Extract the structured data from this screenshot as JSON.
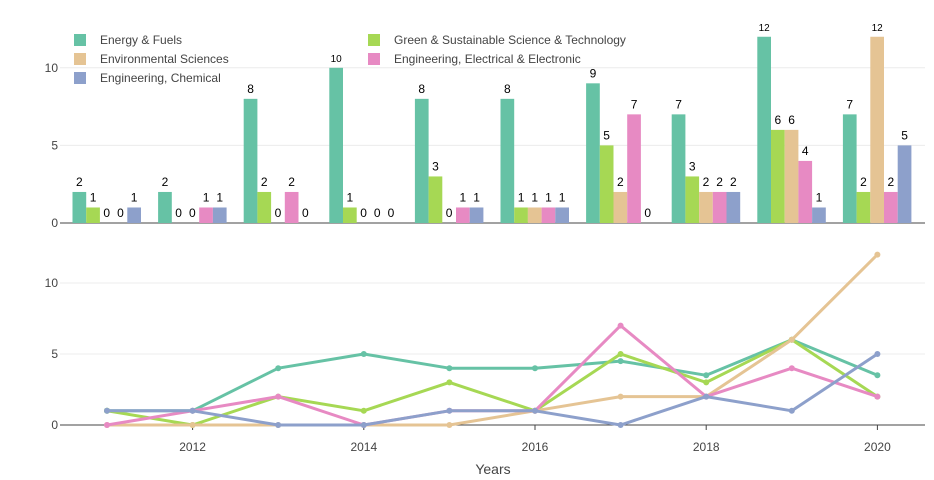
{
  "chart_data": [
    {
      "type": "bar",
      "categories": [
        "2011",
        "2012",
        "2013",
        "2014",
        "2015",
        "2016",
        "2017",
        "2018",
        "2019",
        "2020"
      ],
      "series": [
        {
          "name": "Energy & Fuels",
          "color": "#66c2a5",
          "values": [
            2,
            2,
            8,
            10,
            8,
            8,
            9,
            7,
            12,
            7
          ]
        },
        {
          "name": "Green & Sustainable Science & Technology",
          "color": "#a6d854",
          "values": [
            1,
            0,
            2,
            1,
            3,
            1,
            5,
            3,
            6,
            2
          ]
        },
        {
          "name": "Environmental Sciences",
          "color": "#e5c494",
          "values": [
            0,
            0,
            0,
            0,
            0,
            1,
            2,
            2,
            6,
            12
          ]
        },
        {
          "name": "Engineering, Electrical & Electronic",
          "color": "#e78ac3",
          "values": [
            0,
            1,
            2,
            0,
            1,
            1,
            7,
            2,
            4,
            2
          ]
        },
        {
          "name": "Engineering, Chemical",
          "color": "#8da0cb",
          "values": [
            1,
            1,
            0,
            0,
            1,
            1,
            0,
            2,
            1,
            5
          ]
        }
      ],
      "y_ticks": [
        "0",
        "5",
        "10"
      ],
      "ylim": [
        0,
        12
      ],
      "grid": true,
      "legend": "top-left, two columns"
    },
    {
      "type": "line",
      "x": [
        2011,
        2012,
        2013,
        2014,
        2015,
        2016,
        2017,
        2018,
        2019,
        2020
      ],
      "series": [
        {
          "name": "Energy & Fuels",
          "color": "#66c2a5",
          "values": [
            1,
            1,
            4,
            5,
            4,
            4,
            4.5,
            3.5,
            6,
            3.5
          ]
        },
        {
          "name": "Green & Sustainable Science & Technology",
          "color": "#a6d854",
          "values": [
            1,
            0,
            2,
            1,
            3,
            1,
            5,
            3,
            6,
            2
          ]
        },
        {
          "name": "Environmental Sciences",
          "color": "#e5c494",
          "values": [
            0,
            0,
            0,
            0,
            0,
            1,
            2,
            2,
            6,
            12
          ]
        },
        {
          "name": "Engineering, Electrical & Electronic",
          "color": "#e78ac3",
          "values": [
            0,
            1,
            2,
            0,
            1,
            1,
            7,
            2,
            4,
            2
          ]
        },
        {
          "name": "Engineering, Chemical",
          "color": "#8da0cb",
          "values": [
            1,
            1,
            0,
            0,
            1,
            1,
            0,
            2,
            1,
            5
          ]
        }
      ],
      "x_ticks": [
        "2012",
        "2014",
        "2016",
        "2018",
        "2020"
      ],
      "y_ticks": [
        "0",
        "5",
        "10"
      ],
      "ylim": [
        0,
        12
      ],
      "xlabel": "Years",
      "grid": true
    }
  ]
}
